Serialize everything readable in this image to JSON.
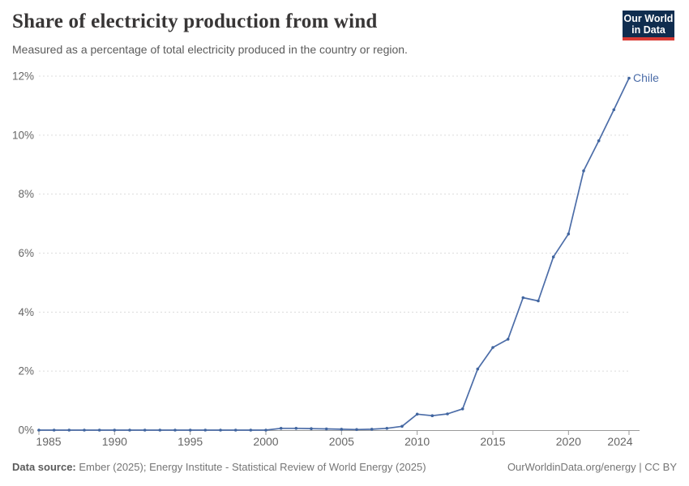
{
  "header": {
    "title": "Share of electricity production from wind",
    "subtitle": "Measured as a percentage of total electricity produced in the country or region."
  },
  "logo": {
    "line1": "Our World",
    "line2": "in Data"
  },
  "footer": {
    "source_label": "Data source:",
    "source_text": " Ember (2025); Energy Institute - Statistical Review of World Energy (2025)",
    "credit": "OurWorldinData.org/energy | CC BY"
  },
  "colors": {
    "line": "#4C6DA8",
    "marker": "#40659F",
    "entity_label": "#4C6DA8",
    "grid": "#DCDCDC",
    "axis": "#9A9A9A",
    "tick_text": "#666666",
    "logo_bg": "#102D4F",
    "logo_red": "#D93A34",
    "title_text": "#383636",
    "subtitle_text": "#5B5B5B",
    "footer_text": "#757575"
  },
  "chart_data": {
    "type": "line",
    "title": "Share of electricity production from wind",
    "unit": "%",
    "xlim": [
      1985,
      2024
    ],
    "ylim": [
      0,
      12
    ],
    "grid": true,
    "legend_position": "end-of-line-label",
    "xticks": [
      1985,
      1990,
      1995,
      2000,
      2005,
      2010,
      2015,
      2020,
      2024
    ],
    "yticks": [
      0,
      2,
      4,
      6,
      8,
      10,
      12
    ],
    "ytick_suffix": "%",
    "x": [
      1985,
      1986,
      1987,
      1988,
      1989,
      1990,
      1991,
      1992,
      1993,
      1994,
      1995,
      1996,
      1997,
      1998,
      1999,
      2000,
      2001,
      2002,
      2003,
      2004,
      2005,
      2006,
      2007,
      2008,
      2009,
      2010,
      2011,
      2012,
      2013,
      2014,
      2015,
      2016,
      2017,
      2018,
      2019,
      2020,
      2021,
      2022,
      2023,
      2024
    ],
    "series": [
      {
        "name": "Chile",
        "color": "#4C6DA8",
        "values": [
          0,
          0,
          0,
          0,
          0,
          0,
          0,
          0,
          0,
          0,
          0,
          0,
          0,
          0,
          0,
          0,
          0.06,
          0.06,
          0.05,
          0.04,
          0.03,
          0.02,
          0.03,
          0.06,
          0.13,
          0.54,
          0.49,
          0.55,
          0.72,
          2.07,
          2.8,
          3.08,
          4.49,
          4.38,
          5.87,
          6.65,
          8.79,
          9.81,
          10.86,
          11.93
        ]
      }
    ]
  }
}
